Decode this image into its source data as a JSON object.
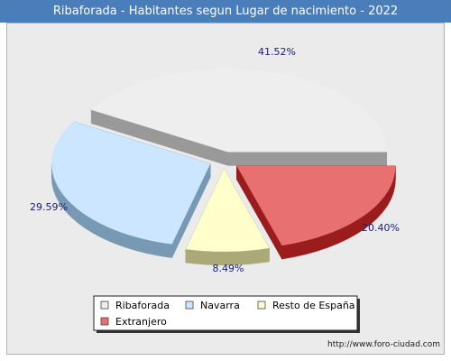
{
  "title": "Ribaforada - Habitantes segun Lugar de nacimiento - 2022",
  "footer": "http://www.foro-ciudad.com",
  "chart_data": {
    "type": "pie",
    "title": "Ribaforada - Habitantes segun Lugar de nacimiento - 2022",
    "series": [
      {
        "name": "Ribaforada",
        "value": 41.52,
        "label": "41.52%",
        "color": "#eeeeee",
        "side": "#999999"
      },
      {
        "name": "Navarra",
        "value": 29.59,
        "label": "29.59%",
        "color": "#cce6ff",
        "side": "#7799b3"
      },
      {
        "name": "Resto de España",
        "value": 8.49,
        "label": "8.49%",
        "color": "#ffffcc",
        "side": "#aaa977"
      },
      {
        "name": "Extranjero",
        "value": 20.4,
        "label": "20.40%",
        "color": "#e87070",
        "side": "#9a1c1c"
      }
    ],
    "legend": {
      "position": "bottom-center",
      "items": [
        "Ribaforada",
        "Navarra",
        "Resto de España",
        "Extranjero"
      ]
    }
  }
}
